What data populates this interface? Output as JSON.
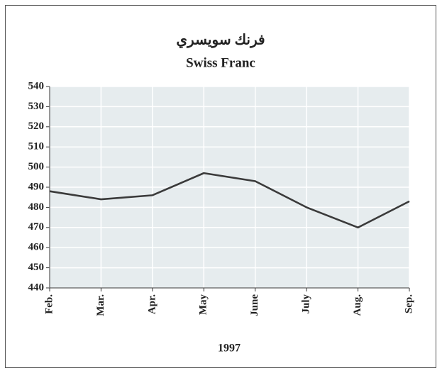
{
  "chart_data": {
    "type": "line",
    "title": "فرنك سويسري",
    "subtitle": "Swiss Franc",
    "x_label": "1997",
    "categories": [
      "Feb.",
      "Mar.",
      "Apr.",
      "May",
      "June",
      "July",
      "Aug.",
      "Sep."
    ],
    "series": [
      {
        "color": "#3a3a3a",
        "values": [
          488,
          484,
          486,
          497,
          493,
          480,
          470,
          483
        ]
      }
    ],
    "ylim": [
      440,
      540
    ],
    "yticks": [
      440,
      450,
      460,
      470,
      480,
      490,
      500,
      510,
      520,
      530,
      540
    ],
    "grid": true
  }
}
